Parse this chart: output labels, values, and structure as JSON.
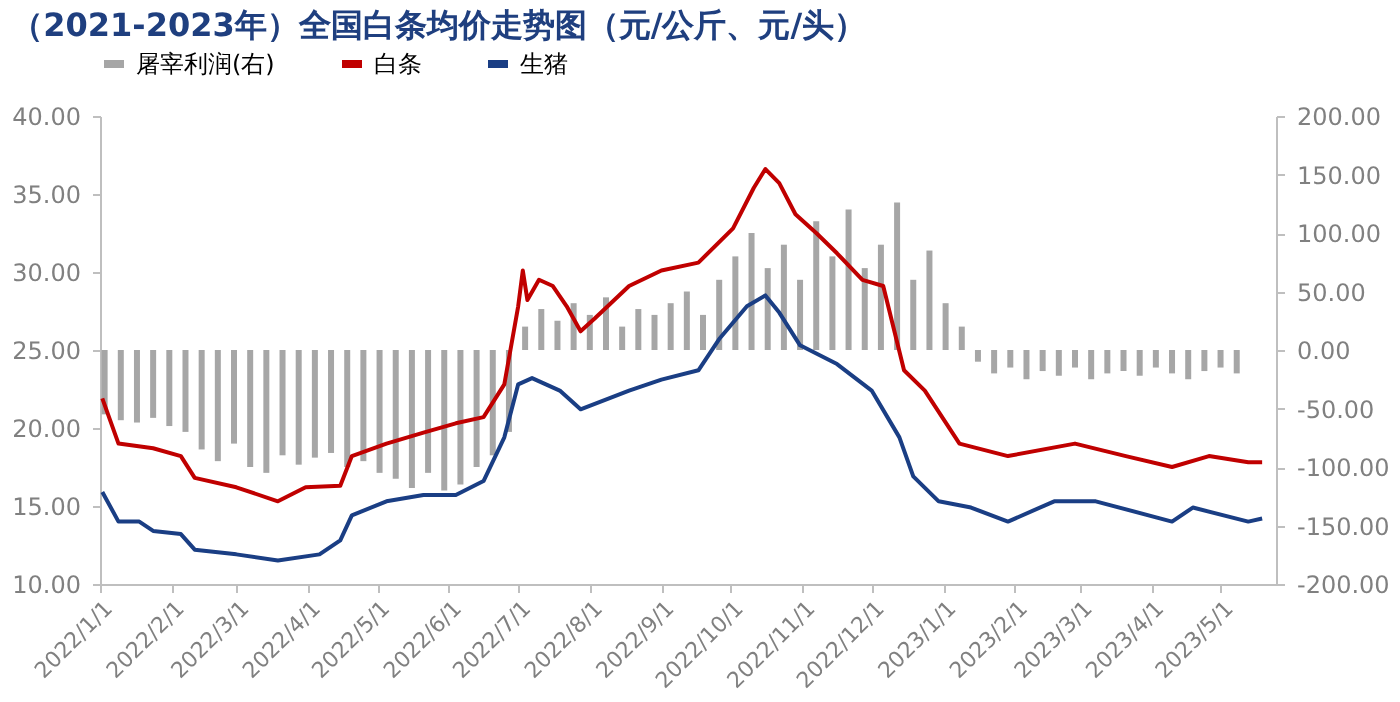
{
  "chart_data": {
    "type": "line",
    "title": "（2021-2023年）全国白条均价走势图（元/公斤、元/头）",
    "legend": "top",
    "grid": false,
    "marker": "none",
    "line_style": "solid",
    "xlim": [
      "2022-01-01",
      "2023-05-25"
    ],
    "xticks": [
      {
        "value": "2022-01-01",
        "label": "2022/1/1"
      },
      {
        "value": "2022-02-01",
        "label": "2022/2/1"
      },
      {
        "value": "2022-03-01",
        "label": "2022/3/1"
      },
      {
        "value": "2022-04-01",
        "label": "2022/4/1"
      },
      {
        "value": "2022-05-01",
        "label": "2022/5/1"
      },
      {
        "value": "2022-06-01",
        "label": "2022/6/1"
      },
      {
        "value": "2022-07-01",
        "label": "2022/7/1"
      },
      {
        "value": "2022-08-01",
        "label": "2022/8/1"
      },
      {
        "value": "2022-09-01",
        "label": "2022/9/1"
      },
      {
        "value": "2022-10-01",
        "label": "2022/10/1"
      },
      {
        "value": "2022-11-01",
        "label": "2022/11/1"
      },
      {
        "value": "2022-12-01",
        "label": "2022/12/1"
      },
      {
        "value": "2023-01-01",
        "label": "2023/1/1"
      },
      {
        "value": "2023-02-01",
        "label": "2023/2/1"
      },
      {
        "value": "2023-03-01",
        "label": "2023/3/1"
      },
      {
        "value": "2023-04-01",
        "label": "2023/4/1"
      },
      {
        "value": "2023-05-01",
        "label": "2023/5/1"
      }
    ],
    "ylim": [
      10,
      40
    ],
    "yticks": [
      {
        "value": 10,
        "label": "10.00"
      },
      {
        "value": 15,
        "label": "15.00"
      },
      {
        "value": 20,
        "label": "20.00"
      },
      {
        "value": 25,
        "label": "25.00"
      },
      {
        "value": 30,
        "label": "30.00"
      },
      {
        "value": 35,
        "label": "35.00"
      },
      {
        "value": 40,
        "label": "40.00"
      }
    ],
    "y2lim": [
      -200,
      200
    ],
    "y2ticks": [
      {
        "value": -200,
        "label": "-200.00"
      },
      {
        "value": -150,
        "label": "-150.00"
      },
      {
        "value": -100,
        "label": "-100.00"
      },
      {
        "value": -50,
        "label": "-50.00"
      },
      {
        "value": 0,
        "label": "0.00"
      },
      {
        "value": 50,
        "label": "50.00"
      },
      {
        "value": 100,
        "label": "100.00"
      },
      {
        "value": 150,
        "label": "150.00"
      },
      {
        "value": 200,
        "label": "200.00"
      }
    ],
    "series": [
      {
        "name": "屠宰利润(右)",
        "type": "bar",
        "axis": "y2",
        "color": "#a6a6a6",
        "x": [
          "2022-01-03",
          "2022-01-10",
          "2022-01-17",
          "2022-01-24",
          "2022-01-31",
          "2022-02-07",
          "2022-02-14",
          "2022-02-21",
          "2022-02-28",
          "2022-03-07",
          "2022-03-14",
          "2022-03-21",
          "2022-03-28",
          "2022-04-04",
          "2022-04-11",
          "2022-04-18",
          "2022-04-25",
          "2022-05-02",
          "2022-05-09",
          "2022-05-16",
          "2022-05-23",
          "2022-05-30",
          "2022-06-06",
          "2022-06-13",
          "2022-06-20",
          "2022-06-27",
          "2022-07-04",
          "2022-07-11",
          "2022-07-18",
          "2022-07-25",
          "2022-08-01",
          "2022-08-08",
          "2022-08-15",
          "2022-08-22",
          "2022-08-29",
          "2022-09-05",
          "2022-09-12",
          "2022-09-19",
          "2022-09-26",
          "2022-10-03",
          "2022-10-10",
          "2022-10-17",
          "2022-10-24",
          "2022-10-31",
          "2022-11-07",
          "2022-11-14",
          "2022-11-21",
          "2022-11-28",
          "2022-12-05",
          "2022-12-12",
          "2022-12-19",
          "2022-12-26",
          "2023-01-02",
          "2023-01-09",
          "2023-01-16",
          "2023-01-23",
          "2023-01-30",
          "2023-02-06",
          "2023-02-13",
          "2023-02-20",
          "2023-02-27",
          "2023-03-06",
          "2023-03-13",
          "2023-03-20",
          "2023-03-27",
          "2023-04-03",
          "2023-04-10",
          "2023-04-17",
          "2023-04-24",
          "2023-05-01",
          "2023-05-08"
        ],
        "values": [
          -55,
          -60,
          -62,
          -58,
          -65,
          -70,
          -85,
          -95,
          -80,
          -100,
          -105,
          -90,
          -98,
          -92,
          -88,
          -100,
          -95,
          -105,
          -110,
          -118,
          -105,
          -120,
          -115,
          -100,
          -90,
          -70,
          20,
          35,
          25,
          40,
          30,
          45,
          20,
          35,
          30,
          40,
          50,
          30,
          60,
          80,
          100,
          70,
          90,
          60,
          110,
          80,
          120,
          70,
          90,
          126,
          60,
          85,
          40,
          20,
          -10,
          -20,
          -15,
          -25,
          -18,
          -22,
          -15,
          -25,
          -20,
          -18,
          -22,
          -15,
          -20,
          -25,
          -18,
          -15,
          -20
        ]
      },
      {
        "name": "白条",
        "color": "#c00000",
        "x": [
          "2022-01-02",
          "2022-01-09",
          "2022-01-24",
          "2022-02-05",
          "2022-02-11",
          "2022-03-01",
          "2022-03-19",
          "2022-03-31",
          "2022-04-15",
          "2022-04-20",
          "2022-05-05",
          "2022-05-21",
          "2022-06-04",
          "2022-06-16",
          "2022-06-25",
          "2022-07-01",
          "2022-07-03",
          "2022-07-05",
          "2022-07-10",
          "2022-07-16",
          "2022-07-22",
          "2022-07-28",
          "2022-08-03",
          "2022-08-18",
          "2022-09-01",
          "2022-09-17",
          "2022-10-02",
          "2022-10-11",
          "2022-10-16",
          "2022-10-22",
          "2022-10-29",
          "2022-11-07",
          "2022-11-16",
          "2022-11-27",
          "2022-12-06",
          "2022-12-15",
          "2022-12-24",
          "2023-01-08",
          "2023-01-29",
          "2023-02-27",
          "2023-03-21",
          "2023-04-10",
          "2023-04-26",
          "2023-05-13",
          "2023-05-19"
        ],
        "values": [
          21.9,
          19.0,
          18.7,
          18.2,
          16.8,
          16.2,
          15.3,
          16.2,
          16.3,
          18.2,
          19.0,
          19.7,
          20.3,
          20.7,
          22.8,
          27.8,
          30.1,
          28.2,
          29.5,
          29.1,
          27.8,
          26.2,
          27.0,
          29.1,
          30.1,
          30.6,
          32.8,
          35.4,
          36.6,
          35.7,
          33.7,
          32.5,
          31.2,
          29.5,
          29.1,
          23.7,
          22.4,
          19.0,
          18.2,
          19.0,
          18.2,
          17.5,
          18.2,
          17.8,
          17.8
        ]
      },
      {
        "name": "生猪",
        "color": "#1a3e84",
        "x": [
          "2022-01-02",
          "2022-01-09",
          "2022-01-18",
          "2022-01-24",
          "2022-02-05",
          "2022-02-11",
          "2022-03-01",
          "2022-03-19",
          "2022-04-06",
          "2022-04-15",
          "2022-04-20",
          "2022-05-05",
          "2022-05-21",
          "2022-06-04",
          "2022-06-16",
          "2022-06-25",
          "2022-07-01",
          "2022-07-07",
          "2022-07-19",
          "2022-07-28",
          "2022-08-18",
          "2022-09-01",
          "2022-09-17",
          "2022-09-26",
          "2022-10-08",
          "2022-10-16",
          "2022-10-22",
          "2022-10-31",
          "2022-11-16",
          "2022-12-01",
          "2022-12-13",
          "2022-12-19",
          "2022-12-30",
          "2023-01-13",
          "2023-01-29",
          "2023-02-18",
          "2023-03-08",
          "2023-04-10",
          "2023-04-19",
          "2023-05-13",
          "2023-05-19"
        ],
        "values": [
          15.9,
          14.0,
          14.0,
          13.4,
          13.2,
          12.2,
          11.9,
          11.5,
          11.9,
          12.8,
          14.4,
          15.3,
          15.7,
          15.7,
          16.6,
          19.4,
          22.8,
          23.2,
          22.4,
          21.2,
          22.4,
          23.1,
          23.7,
          25.7,
          27.8,
          28.5,
          27.4,
          25.3,
          24.1,
          22.4,
          19.4,
          16.9,
          15.3,
          14.9,
          14.0,
          15.3,
          15.3,
          14.0,
          14.9,
          14.0,
          14.2
        ]
      }
    ]
  }
}
